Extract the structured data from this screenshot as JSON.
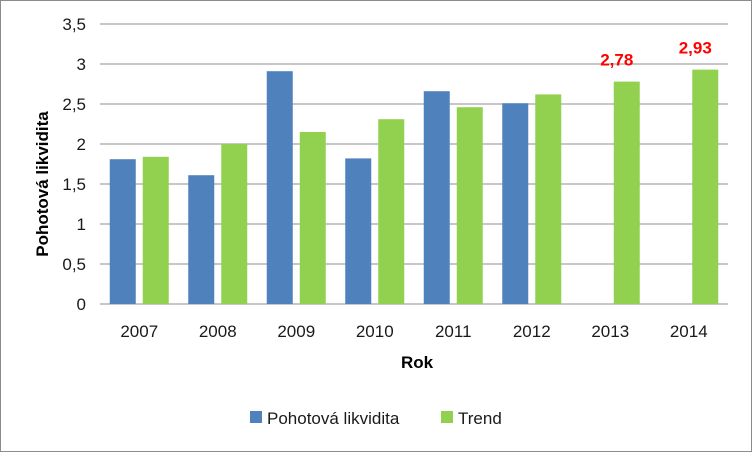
{
  "chart_data": {
    "type": "bar",
    "categories": [
      "2007",
      "2008",
      "2009",
      "2010",
      "2011",
      "2012",
      "2013",
      "2014"
    ],
    "series": [
      {
        "name": "Pohotová likvidita",
        "color": "#4f81bd",
        "values": [
          1.81,
          1.61,
          2.91,
          1.82,
          2.66,
          2.51,
          null,
          null
        ]
      },
      {
        "name": "Trend",
        "color": "#92d050",
        "values": [
          1.84,
          2.0,
          2.15,
          2.31,
          2.46,
          2.62,
          2.78,
          2.93
        ]
      }
    ],
    "data_labels": [
      {
        "series": 1,
        "index": 6,
        "text": "2,78"
      },
      {
        "series": 1,
        "index": 7,
        "text": "2,93"
      }
    ],
    "data_label_color": "#ff0000",
    "xlabel": "Rok",
    "ylabel": "Pohotová likvidita",
    "ylim": [
      0,
      3.5
    ],
    "yticks": [
      0,
      0.5,
      1,
      1.5,
      2,
      2.5,
      3,
      3.5
    ],
    "ytick_labels": [
      "0",
      "0,5",
      "1",
      "1,5",
      "2",
      "2,5",
      "3",
      "3,5"
    ],
    "grid": true,
    "legend_position": "bottom"
  }
}
